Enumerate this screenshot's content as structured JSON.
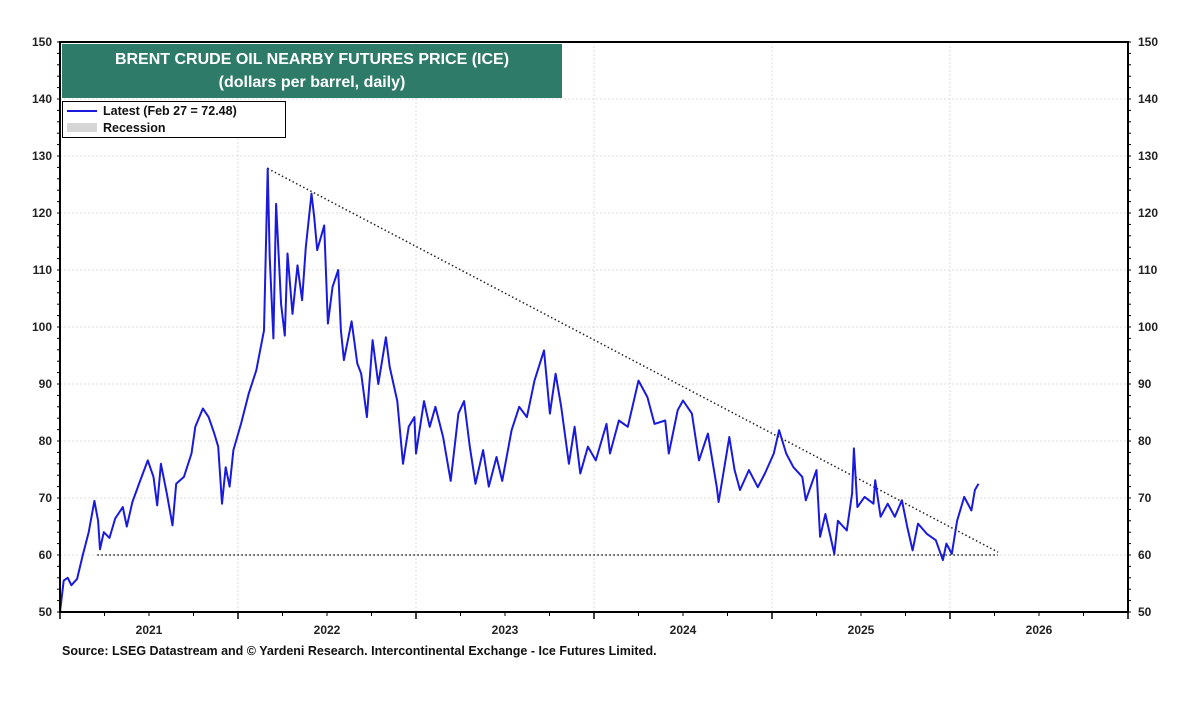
{
  "chart_data": {
    "type": "line",
    "title": "BRENT CRUDE OIL NEARBY FUTURES  PRICE (ICE)",
    "subtitle": "(dollars per barrel, daily)",
    "legend": {
      "position": "top-left",
      "entries": [
        {
          "label": "Latest (Feb 27 = 72.48)",
          "kind": "line",
          "color": "#1a1add"
        },
        {
          "label": "Recession",
          "kind": "shade",
          "color": "#d6d6d6"
        }
      ]
    },
    "source": "Source: LSEG Datastream and © Yardeni Research. Intercontinental Exchange - Ice Futures Limited.",
    "xlim": [
      2021.0,
      2027.0
    ],
    "ylim": [
      50,
      150
    ],
    "x_tick_labels": [
      "2021",
      "2022",
      "2023",
      "2024",
      "2025",
      "2026"
    ],
    "y_ticks": [
      50,
      60,
      70,
      80,
      90,
      100,
      110,
      120,
      130,
      140,
      150
    ],
    "y_axis_sides": [
      "left",
      "right"
    ],
    "grid": true,
    "series": [
      {
        "color": "#1a1add",
        "x": [
          2021.0,
          2021.021,
          2021.043,
          2021.064,
          2021.096,
          2021.128,
          2021.161,
          2021.193,
          2021.214,
          2021.225,
          2021.246,
          2021.278,
          2021.31,
          2021.353,
          2021.375,
          2021.407,
          2021.45,
          2021.493,
          2021.525,
          2021.546,
          2021.567,
          2021.6,
          2021.632,
          2021.653,
          2021.696,
          2021.739,
          2021.76,
          2021.803,
          2021.835,
          2021.867,
          2021.889,
          2021.91,
          2021.931,
          2021.953,
          2021.974,
          2022.017,
          2022.06,
          2022.103,
          2022.146,
          2022.167,
          2022.178,
          2022.199,
          2022.214,
          2022.242,
          2022.263,
          2022.278,
          2022.306,
          2022.334,
          2022.36,
          2022.381,
          2022.413,
          2022.428,
          2022.445,
          2022.484,
          2022.505,
          2022.531,
          2022.563,
          2022.578,
          2022.595,
          2022.638,
          2022.67,
          2022.692,
          2022.724,
          2022.756,
          2022.788,
          2022.831,
          2022.852,
          2022.895,
          2022.927,
          2022.959,
          2022.991,
          2023.0,
          2023.045,
          2023.077,
          2023.109,
          2023.152,
          2023.195,
          2023.238,
          2023.27,
          2023.302,
          2023.334,
          2023.377,
          2023.409,
          2023.452,
          2023.484,
          2023.537,
          2023.58,
          2023.623,
          2023.666,
          2023.719,
          2023.752,
          2023.784,
          2023.816,
          2023.859,
          2023.891,
          2023.923,
          2023.966,
          2024.01,
          2024.07,
          2024.09,
          2024.14,
          2024.19,
          2024.25,
          2024.3,
          2024.34,
          2024.4,
          2024.42,
          2024.47,
          2024.5,
          2024.55,
          2024.59,
          2024.64,
          2024.69,
          2024.7,
          2024.73,
          2024.76,
          2024.79,
          2024.82,
          2024.87,
          2024.92,
          2024.96,
          2025.01,
          2025.04,
          2025.08,
          2025.12,
          2025.17,
          2025.19,
          2025.25,
          2025.27,
          2025.3,
          2025.35,
          2025.37,
          2025.42,
          2025.45,
          2025.46,
          2025.48,
          2025.52,
          2025.57,
          2025.58,
          2025.61,
          2025.65,
          2025.69,
          2025.73,
          2025.76,
          2025.79,
          2025.82,
          2025.87,
          2025.92,
          2025.96,
          2025.98,
          2026.01,
          2026.04,
          2026.08,
          2026.12,
          2026.14,
          2026.16
        ],
        "y": [
          50,
          55.5,
          56,
          54.7,
          55.8,
          60,
          64,
          69.5,
          66,
          61,
          64,
          63,
          66.4,
          68.4,
          65,
          69.3,
          73,
          76.6,
          73.7,
          68.7,
          76,
          70.8,
          65.2,
          72.5,
          73.7,
          77.8,
          82.5,
          85.7,
          84.2,
          81.3,
          79,
          69,
          75.4,
          72,
          78.4,
          83,
          88.3,
          92.4,
          99.4,
          127.8,
          112.3,
          98,
          121.6,
          104,
          98.5,
          112.9,
          102.3,
          110.8,
          104.7,
          114,
          123.4,
          119.3,
          113.5,
          117.8,
          100.6,
          107,
          110,
          99.4,
          94.2,
          101,
          93.6,
          91.8,
          84.2,
          97.7,
          90,
          98.2,
          93,
          87,
          76,
          82.5,
          84.2,
          77.8,
          87,
          82.5,
          86,
          80.7,
          73,
          84.8,
          87,
          79,
          72.5,
          78.4,
          72,
          77.2,
          73,
          81.9,
          86,
          84.2,
          90.6,
          95.9,
          84.8,
          91.8,
          86,
          76,
          82.5,
          74.3,
          79,
          76.6,
          83,
          77.8,
          83.6,
          82.5,
          90.6,
          87.7,
          83,
          83.6,
          77.8,
          85.4,
          87.1,
          84.8,
          76.6,
          81.3,
          71.9,
          69.3,
          74.9,
          80.7,
          74.9,
          71.4,
          74.9,
          71.9,
          74.3,
          77.8,
          81.9,
          77.8,
          75.4,
          73.7,
          69.6,
          74.9,
          63.2,
          67.2,
          60.2,
          66,
          64.3,
          70.8,
          78.7,
          68.4,
          70.2,
          69,
          73.1,
          66.7,
          69,
          66.7,
          69.6,
          64.9,
          60.8,
          65.5,
          63.7,
          62.6,
          59.1,
          62,
          60.2,
          66,
          70.2,
          67.8,
          71.4,
          72.5
        ]
      }
    ],
    "annotations": [
      {
        "kind": "dotted-trendline",
        "from": [
          2022.167,
          127.8
        ],
        "to": [
          2026.27,
          60.5
        ]
      },
      {
        "kind": "dotted-horizontal",
        "y": 60,
        "from_x": 2021.21,
        "to_x": 2026.27
      }
    ]
  }
}
